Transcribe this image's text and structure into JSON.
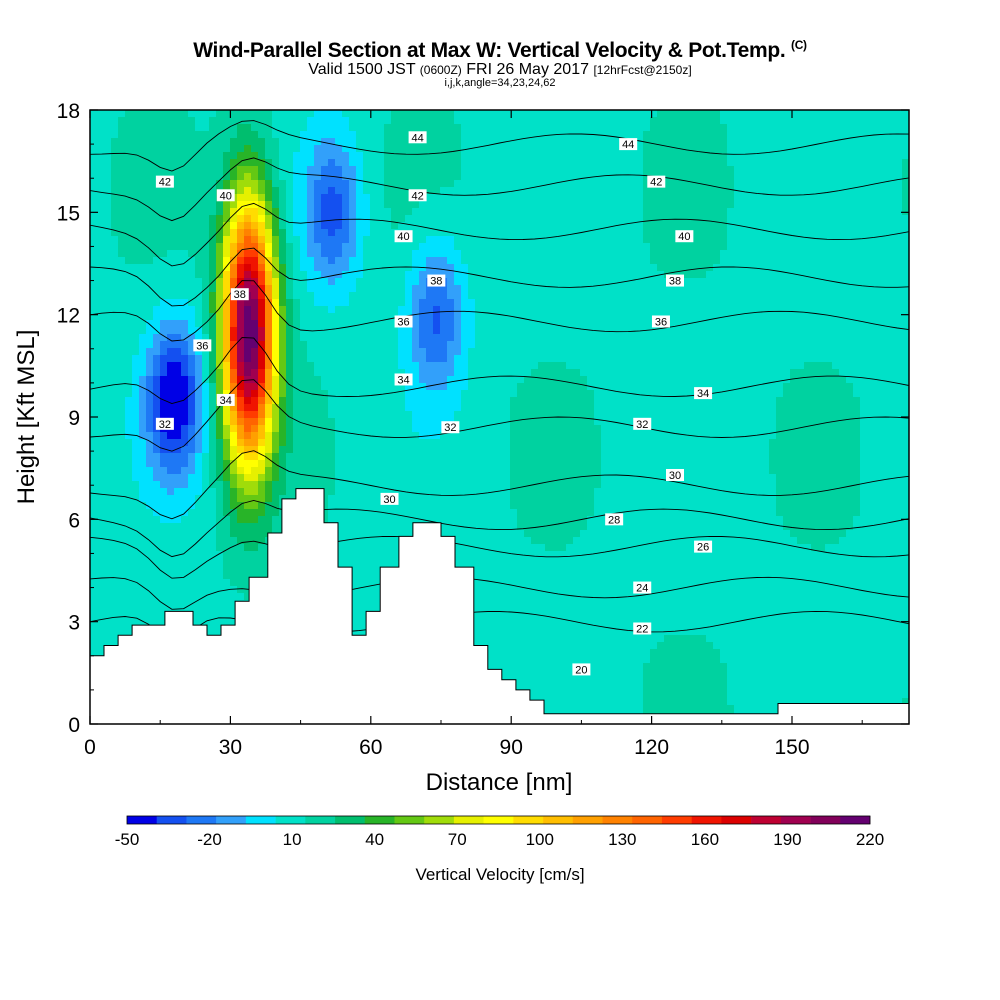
{
  "title": {
    "main": "Wind-Parallel Section at Max W: Vertical Velocity & Pot.Temp.",
    "copyright": "(C)",
    "valid_prefix": "Valid 1500 JST",
    "utc": "(0600Z)",
    "valid_date": "FRI 26 May 2017",
    "forecast": "[12hrFcst@2150z]",
    "indices": "i,j,k,angle=34,23,24,62"
  },
  "chart_data": {
    "type": "heatmap",
    "xlabel": "Distance [nm]",
    "ylabel": "Height [Kft MSL]",
    "xlim": [
      0,
      175
    ],
    "ylim": [
      0,
      18
    ],
    "x_ticks": [
      0,
      30,
      60,
      90,
      120,
      150
    ],
    "y_ticks": [
      0,
      3,
      6,
      9,
      12,
      15,
      18
    ],
    "colorbar": {
      "label": "Vertical Velocity [cm/s]",
      "tick_labels": [
        "-50",
        "-20",
        "10",
        "40",
        "70",
        "100",
        "130",
        "160",
        "190",
        "220"
      ],
      "colors": [
        "#0000e6",
        "#1450f0",
        "#1e78f5",
        "#32a0fa",
        "#00e1ff",
        "#00e1c8",
        "#00d2a0",
        "#00be6e",
        "#28b428",
        "#64c814",
        "#a0dc0a",
        "#e6f000",
        "#ffff00",
        "#ffdc00",
        "#ffbe00",
        "#ffa000",
        "#ff8200",
        "#ff6400",
        "#ff3c00",
        "#f01400",
        "#dc0000",
        "#be0032",
        "#a00050",
        "#82005a",
        "#640070"
      ]
    },
    "w_features": [
      {
        "kind": "updraft",
        "x": 34,
        "y": 11.5,
        "peak": 220
      },
      {
        "kind": "downdraft",
        "x": 18,
        "y": 9.5,
        "peak": -50
      },
      {
        "kind": "downdraft",
        "x": 74,
        "y": 12,
        "peak": -30
      },
      {
        "kind": "downdraft",
        "x": 52,
        "y": 15,
        "peak": -30
      }
    ],
    "theta_contours": [
      {
        "value": 22,
        "y": 3.0
      },
      {
        "value": 24,
        "y": 4.0
      },
      {
        "value": 26,
        "y": 5.2
      },
      {
        "value": 28,
        "y": 6.0
      },
      {
        "value": 30,
        "y": 7.0
      },
      {
        "value": 32,
        "y": 8.7
      },
      {
        "value": 34,
        "y": 9.9
      },
      {
        "value": 36,
        "y": 11.8
      },
      {
        "value": 38,
        "y": 13.1
      },
      {
        "value": 40,
        "y": 14.5
      },
      {
        "value": 42,
        "y": 15.8
      },
      {
        "value": 44,
        "y": 17.0
      }
    ],
    "contour_labels": [
      {
        "text": "44",
        "x": 70,
        "y": 17.2
      },
      {
        "text": "44",
        "x": 115,
        "y": 17.0
      },
      {
        "text": "42",
        "x": 16,
        "y": 15.9
      },
      {
        "text": "42",
        "x": 70,
        "y": 15.5
      },
      {
        "text": "42",
        "x": 121,
        "y": 15.9
      },
      {
        "text": "40",
        "x": 29,
        "y": 15.5
      },
      {
        "text": "40",
        "x": 67,
        "y": 14.3
      },
      {
        "text": "40",
        "x": 127,
        "y": 14.3
      },
      {
        "text": "38",
        "x": 32,
        "y": 12.6
      },
      {
        "text": "38",
        "x": 74,
        "y": 13.0
      },
      {
        "text": "38",
        "x": 125,
        "y": 13.0
      },
      {
        "text": "36",
        "x": 24,
        "y": 11.1
      },
      {
        "text": "36",
        "x": 67,
        "y": 11.8
      },
      {
        "text": "36",
        "x": 122,
        "y": 11.8
      },
      {
        "text": "34",
        "x": 29,
        "y": 9.5
      },
      {
        "text": "34",
        "x": 67,
        "y": 10.1
      },
      {
        "text": "34",
        "x": 131,
        "y": 9.7
      },
      {
        "text": "32",
        "x": 16,
        "y": 8.8
      },
      {
        "text": "32",
        "x": 77,
        "y": 8.7
      },
      {
        "text": "32",
        "x": 118,
        "y": 8.8
      },
      {
        "text": "30",
        "x": 64,
        "y": 6.6
      },
      {
        "text": "30",
        "x": 125,
        "y": 7.3
      },
      {
        "text": "28",
        "x": 112,
        "y": 6.0
      },
      {
        "text": "26",
        "x": 131,
        "y": 5.2
      },
      {
        "text": "24",
        "x": 118,
        "y": 4.0
      },
      {
        "text": "22",
        "x": 118,
        "y": 2.8
      },
      {
        "text": "20",
        "x": 105,
        "y": 1.6
      }
    ],
    "terrain": [
      [
        0,
        2.0
      ],
      [
        3,
        2.0
      ],
      [
        3,
        2.3
      ],
      [
        6,
        2.3
      ],
      [
        6,
        2.6
      ],
      [
        9,
        2.6
      ],
      [
        9,
        2.9
      ],
      [
        16,
        2.9
      ],
      [
        16,
        3.3
      ],
      [
        22,
        3.3
      ],
      [
        22,
        2.9
      ],
      [
        25,
        2.9
      ],
      [
        25,
        2.6
      ],
      [
        28,
        2.6
      ],
      [
        28,
        2.9
      ],
      [
        31,
        2.9
      ],
      [
        31,
        3.6
      ],
      [
        34,
        3.6
      ],
      [
        34,
        4.3
      ],
      [
        38,
        4.3
      ],
      [
        38,
        5.6
      ],
      [
        41,
        5.6
      ],
      [
        41,
        6.6
      ],
      [
        44,
        6.6
      ],
      [
        44,
        6.9
      ],
      [
        50,
        6.9
      ],
      [
        50,
        5.9
      ],
      [
        53,
        5.9
      ],
      [
        53,
        4.6
      ],
      [
        56,
        4.6
      ],
      [
        56,
        2.6
      ],
      [
        59,
        2.6
      ],
      [
        59,
        3.3
      ],
      [
        62,
        3.3
      ],
      [
        62,
        4.6
      ],
      [
        66,
        4.6
      ],
      [
        66,
        5.5
      ],
      [
        69,
        5.5
      ],
      [
        69,
        5.9
      ],
      [
        75,
        5.9
      ],
      [
        75,
        5.5
      ],
      [
        78,
        5.5
      ],
      [
        78,
        4.6
      ],
      [
        82,
        4.6
      ],
      [
        82,
        2.3
      ],
      [
        85,
        2.3
      ],
      [
        85,
        1.6
      ],
      [
        88,
        1.6
      ],
      [
        88,
        1.3
      ],
      [
        91,
        1.3
      ],
      [
        91,
        1.0
      ],
      [
        94,
        1.0
      ],
      [
        94,
        0.7
      ],
      [
        97,
        0.7
      ],
      [
        97,
        0.3
      ],
      [
        147,
        0.3
      ],
      [
        147,
        0.6
      ],
      [
        175,
        0.6
      ]
    ]
  }
}
